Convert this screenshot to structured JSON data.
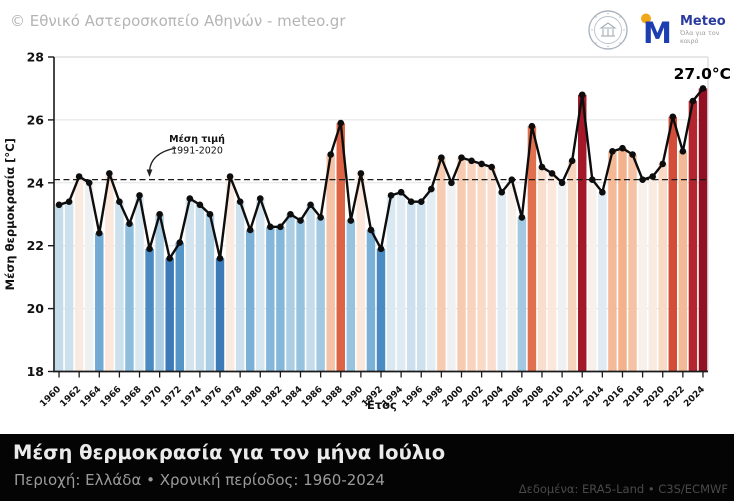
{
  "header": {
    "copyright": "© Εθνικό Αστεροσκοπείο Αθηνών - meteo.gr",
    "noa_seal": "national-observatory-of-athens-seal",
    "meteo_logo": {
      "wordmark": "Meteo",
      "tagline": "Όλα για τον καιρό",
      "brand_blue": "#1d3eb1",
      "brand_yellow": "#f2a71b"
    }
  },
  "chart_data": {
    "type": "bar",
    "title": "",
    "xlabel": "Έτος",
    "ylabel": "Μέση θερμοκρασία [°C]",
    "ylim": [
      18,
      28
    ],
    "yticks": [
      18,
      20,
      22,
      24,
      26,
      28
    ],
    "xtick_interval": 2,
    "grid": true,
    "x": [
      1960,
      1961,
      1962,
      1963,
      1964,
      1965,
      1966,
      1967,
      1968,
      1969,
      1970,
      1971,
      1972,
      1973,
      1974,
      1975,
      1976,
      1977,
      1978,
      1979,
      1980,
      1981,
      1982,
      1983,
      1984,
      1985,
      1986,
      1987,
      1988,
      1989,
      1990,
      1991,
      1992,
      1993,
      1994,
      1995,
      1996,
      1997,
      1998,
      1999,
      2000,
      2001,
      2002,
      2003,
      2004,
      2005,
      2006,
      2007,
      2008,
      2009,
      2010,
      2011,
      2012,
      2013,
      2014,
      2015,
      2016,
      2017,
      2018,
      2019,
      2020,
      2021,
      2022,
      2023,
      2024
    ],
    "values": [
      23.3,
      23.4,
      24.2,
      24.0,
      22.4,
      24.3,
      23.4,
      22.7,
      23.6,
      21.9,
      23.0,
      21.6,
      22.1,
      23.5,
      23.3,
      23.0,
      21.6,
      24.2,
      23.4,
      22.5,
      23.5,
      22.6,
      22.6,
      23.0,
      22.8,
      23.3,
      22.9,
      24.9,
      25.9,
      22.8,
      24.3,
      22.5,
      21.9,
      23.6,
      23.7,
      23.4,
      23.4,
      23.8,
      24.8,
      24.0,
      24.8,
      24.7,
      24.6,
      24.5,
      23.7,
      24.1,
      22.9,
      25.8,
      24.5,
      24.3,
      24.0,
      24.7,
      26.8,
      24.1,
      23.7,
      25.0,
      25.1,
      24.9,
      24.1,
      24.2,
      24.6,
      26.1,
      25.0,
      26.6,
      27.0
    ],
    "mean_line": {
      "value": 24.1,
      "label_line1": "Μέση τιμή",
      "label_line2": "1991-2020"
    },
    "peak_label": {
      "text": "27.0°C",
      "year": 2024
    },
    "line_color": "#0d0d0d",
    "colormap_stops": [
      [
        -2.6,
        "#3876b4"
      ],
      [
        -2.0,
        "#5596c9"
      ],
      [
        -1.5,
        "#85b7da"
      ],
      [
        -1.0,
        "#b5d4e7"
      ],
      [
        -0.55,
        "#d8e7f0"
      ],
      [
        -0.15,
        "#eaf0f6"
      ],
      [
        0.0,
        "#f7f0eb"
      ],
      [
        0.15,
        "#fbe9de"
      ],
      [
        0.55,
        "#f8d8c4"
      ],
      [
        1.0,
        "#f3b18c"
      ],
      [
        1.5,
        "#e88861"
      ],
      [
        1.9,
        "#d8573a"
      ],
      [
        2.35,
        "#bf3030"
      ],
      [
        2.65,
        "#a71b2b"
      ],
      [
        2.95,
        "#8c0e21"
      ]
    ]
  },
  "footer": {
    "title": "Μέση θερμοκρασία για τον μήνα Ιούλιο",
    "subtitle": "Περιοχή: Ελλάδα • Χρονική περίοδος: 1960-2024",
    "source": "Δεδομένα: ERA5-Land • C3S/ECMWF"
  }
}
